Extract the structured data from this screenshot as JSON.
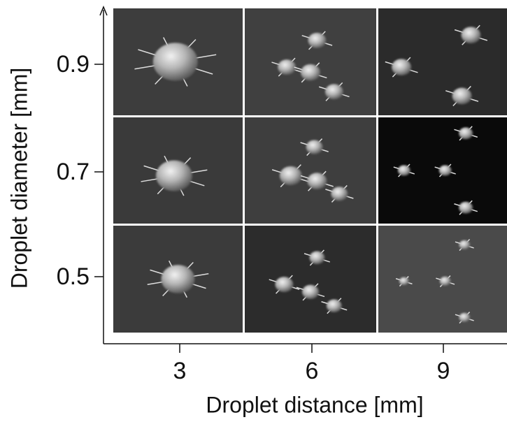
{
  "figure": {
    "x_axis": {
      "label": "Droplet distance  [mm]",
      "ticks": [
        3,
        6,
        9
      ]
    },
    "y_axis": {
      "label": "Droplet diameter  [mm]",
      "ticks": [
        0.9,
        0.7,
        0.5
      ]
    }
  }
}
